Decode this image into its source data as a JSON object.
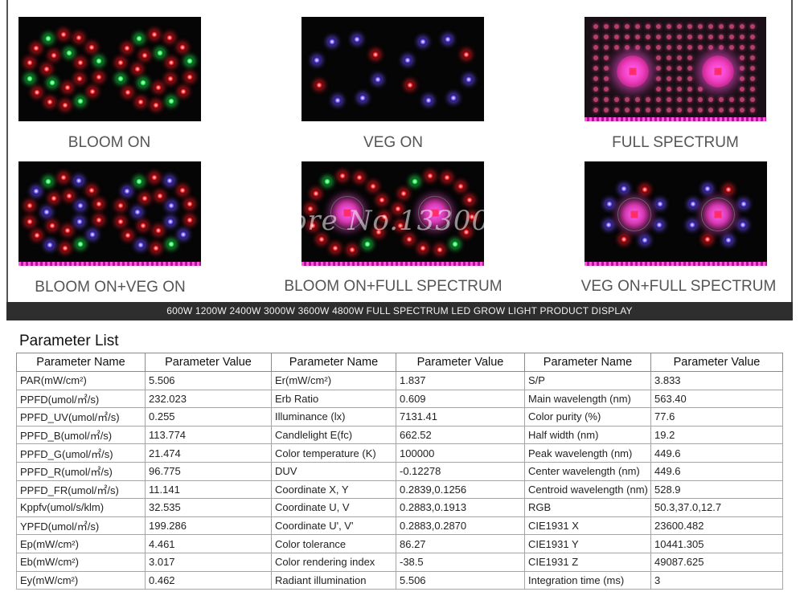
{
  "display": {
    "panels": [
      {
        "caption": "BLOOM ON"
      },
      {
        "caption": "VEG ON"
      },
      {
        "caption": "FULL SPECTRUM"
      },
      {
        "caption": "BLOOM ON+VEG ON"
      },
      {
        "caption": "BLOOM ON+FULL SPECTRUM"
      },
      {
        "caption": "VEG ON+FULL SPECTRUM"
      }
    ],
    "watermark": "Store No.1330071",
    "banner": "600W  1200W  2400W  3000W  3600W  4800W  FULL SPECTRUM LED GROW LIGHT PRODUCT DISPLAY"
  },
  "parameters": {
    "title": "Parameter List",
    "headers": [
      "Parameter Name",
      "Parameter Value",
      "Parameter Name",
      "Parameter Value",
      "Parameter Name",
      "Parameter Value"
    ],
    "rows": [
      [
        "PAR(mW/cm²)",
        "5.506",
        "Er(mW/cm²)",
        "1.837",
        "S/P",
        "3.833"
      ],
      [
        "PPFD(umol/㎡/s)",
        "232.023",
        "Erb Ratio",
        "0.609",
        "Main wavelength (nm)",
        "563.40"
      ],
      [
        "PPFD_UV(umol/㎡/s)",
        "0.255",
        "Illuminance (lx)",
        "7131.41",
        "Color purity (%)",
        "77.6"
      ],
      [
        "PPFD_B(umol/㎡/s)",
        "113.774",
        "Candlelight E(fc)",
        "662.52",
        "Half width (nm)",
        "19.2"
      ],
      [
        "PPFD_G(umol/㎡/s)",
        "21.474",
        "Color temperature (K)",
        "100000",
        "Peak wavelength (nm)",
        "449.6"
      ],
      [
        "PPFD_R(umol/㎡/s)",
        "96.775",
        "DUV",
        "-0.12278",
        "Center wavelength (nm)",
        "449.6"
      ],
      [
        "PPFD_FR(umol/㎡/s)",
        "11.141",
        "Coordinate X, Y",
        "0.2839,0.1256",
        "Centroid wavelength (nm)",
        "528.9"
      ],
      [
        "Kppfv(umol/s/klm)",
        "32.535",
        "Coordinate U, V",
        "0.2883,0.1913",
        "RGB",
        "50.3,37.0,12.7"
      ],
      [
        "YPFD(umol/㎡/s)",
        "199.286",
        "Coordinate U', V'",
        "0.2883,0.2870",
        "CIE1931 X",
        "23600.482"
      ],
      [
        "Ep(mW/cm²)",
        "4.461",
        "Color tolerance",
        "86.27",
        "CIE1931 Y",
        "10441.305"
      ],
      [
        "Eb(mW/cm²)",
        "3.017",
        "Color rendering index",
        "-38.5",
        "CIE1931 Z",
        "49087.625"
      ],
      [
        "Ey(mW/cm²)",
        "0.462",
        "Radiant illumination",
        "5.506",
        "Integration time (ms)",
        "3"
      ]
    ]
  }
}
